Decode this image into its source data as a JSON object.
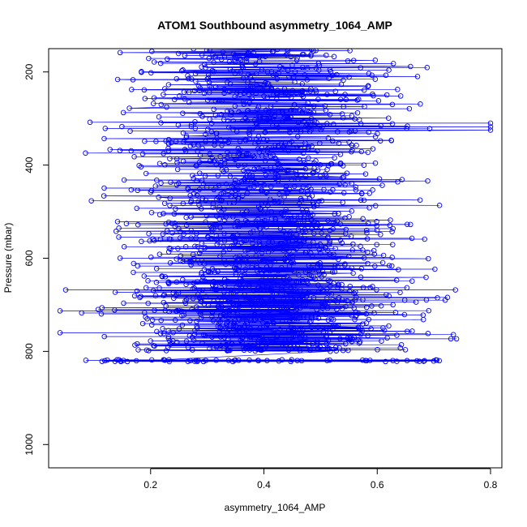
{
  "chart_data": {
    "type": "scatter",
    "title": "ATOM1 Southbound asymmetry_1064_AMP",
    "xlabel": "asymmetry_1064_AMP",
    "ylabel": "Pressure (mbar)",
    "xlim": [
      0.02,
      0.82
    ],
    "ylim": [
      1050,
      150
    ],
    "y_reversed": true,
    "x_ticks": [
      "0.2",
      "0.4",
      "0.6",
      "0.8"
    ],
    "y_ticks": [
      "200",
      "400",
      "600",
      "800",
      "1000"
    ],
    "series_color": "#0000FF",
    "marker": "open-circle",
    "connected": true,
    "grid": false,
    "density_bands": [
      {
        "y_min": 150,
        "y_max": 330,
        "x_min": 0.06,
        "x_max": 0.72,
        "n": 380
      },
      {
        "y_min": 330,
        "y_max": 520,
        "x_min": 0.05,
        "x_max": 0.71,
        "n": 420
      },
      {
        "y_min": 520,
        "y_max": 660,
        "x_min": 0.05,
        "x_max": 0.72,
        "n": 400
      },
      {
        "y_min": 660,
        "y_max": 800,
        "x_min": 0.04,
        "x_max": 0.74,
        "n": 520
      }
    ],
    "extra_points": [
      {
        "x": 0.8,
        "y": 310
      },
      {
        "x": 0.8,
        "y": 318
      },
      {
        "x": 0.8,
        "y": 325
      },
      {
        "x": 0.74,
        "y": 773
      },
      {
        "x": 0.73,
        "y": 773
      },
      {
        "x": 0.72,
        "y": 690
      },
      {
        "x": 0.04,
        "y": 760
      },
      {
        "x": 0.04,
        "y": 713
      },
      {
        "x": 0.05,
        "y": 668
      }
    ],
    "bottom_row": {
      "y": 820,
      "x_min": 0.07,
      "x_max": 0.72,
      "n": 60
    }
  }
}
